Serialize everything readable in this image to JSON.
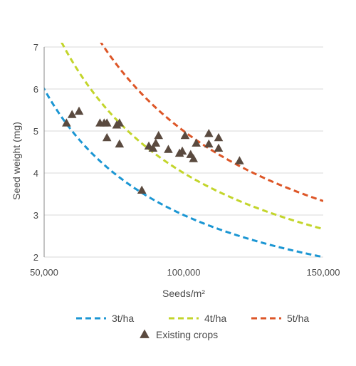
{
  "chart_data": {
    "type": "scatter",
    "title": "",
    "xlabel": "Seeds/m²",
    "ylabel": "Seed weight (mg)",
    "xlim": [
      50000,
      150000
    ],
    "ylim": [
      2,
      7
    ],
    "x_ticks": [
      50000,
      100000,
      150000
    ],
    "x_tick_labels": [
      "50,000",
      "100,000",
      "150,000"
    ],
    "y_ticks": [
      2,
      3,
      4,
      5,
      6,
      7
    ],
    "y_tick_labels": [
      "2",
      "3",
      "4",
      "5",
      "6",
      "7"
    ],
    "grid": "horizontal",
    "legend_position": "bottom",
    "curves": [
      {
        "name": "3t/ha",
        "yield_t_ha": 3,
        "color": "#1b96d3",
        "style": "dashed"
      },
      {
        "name": "4t/ha",
        "yield_t_ha": 4,
        "color": "#c3d52b",
        "style": "dashed"
      },
      {
        "name": "5t/ha",
        "yield_t_ha": 5,
        "color": "#dd5627",
        "style": "dashed"
      }
    ],
    "points": {
      "name": "Existing crops",
      "marker": "triangle",
      "color": "#5a4a3f",
      "data": [
        {
          "x": 58000,
          "y": 5.2
        },
        {
          "x": 60000,
          "y": 5.4
        },
        {
          "x": 62500,
          "y": 5.48
        },
        {
          "x": 70000,
          "y": 5.2
        },
        {
          "x": 71500,
          "y": 5.2
        },
        {
          "x": 72500,
          "y": 5.2
        },
        {
          "x": 72500,
          "y": 4.85
        },
        {
          "x": 76000,
          "y": 5.15
        },
        {
          "x": 77000,
          "y": 5.2
        },
        {
          "x": 77000,
          "y": 4.7
        },
        {
          "x": 85000,
          "y": 3.6
        },
        {
          "x": 87500,
          "y": 4.65
        },
        {
          "x": 89000,
          "y": 4.6
        },
        {
          "x": 90000,
          "y": 4.72
        },
        {
          "x": 91000,
          "y": 4.9
        },
        {
          "x": 94500,
          "y": 4.57
        },
        {
          "x": 98500,
          "y": 4.48
        },
        {
          "x": 99500,
          "y": 4.53
        },
        {
          "x": 100500,
          "y": 4.9
        },
        {
          "x": 102500,
          "y": 4.45
        },
        {
          "x": 103500,
          "y": 4.35
        },
        {
          "x": 104500,
          "y": 4.72
        },
        {
          "x": 109000,
          "y": 4.95
        },
        {
          "x": 109000,
          "y": 4.7
        },
        {
          "x": 112500,
          "y": 4.85
        },
        {
          "x": 112500,
          "y": 4.6
        },
        {
          "x": 120000,
          "y": 4.3
        }
      ]
    }
  }
}
